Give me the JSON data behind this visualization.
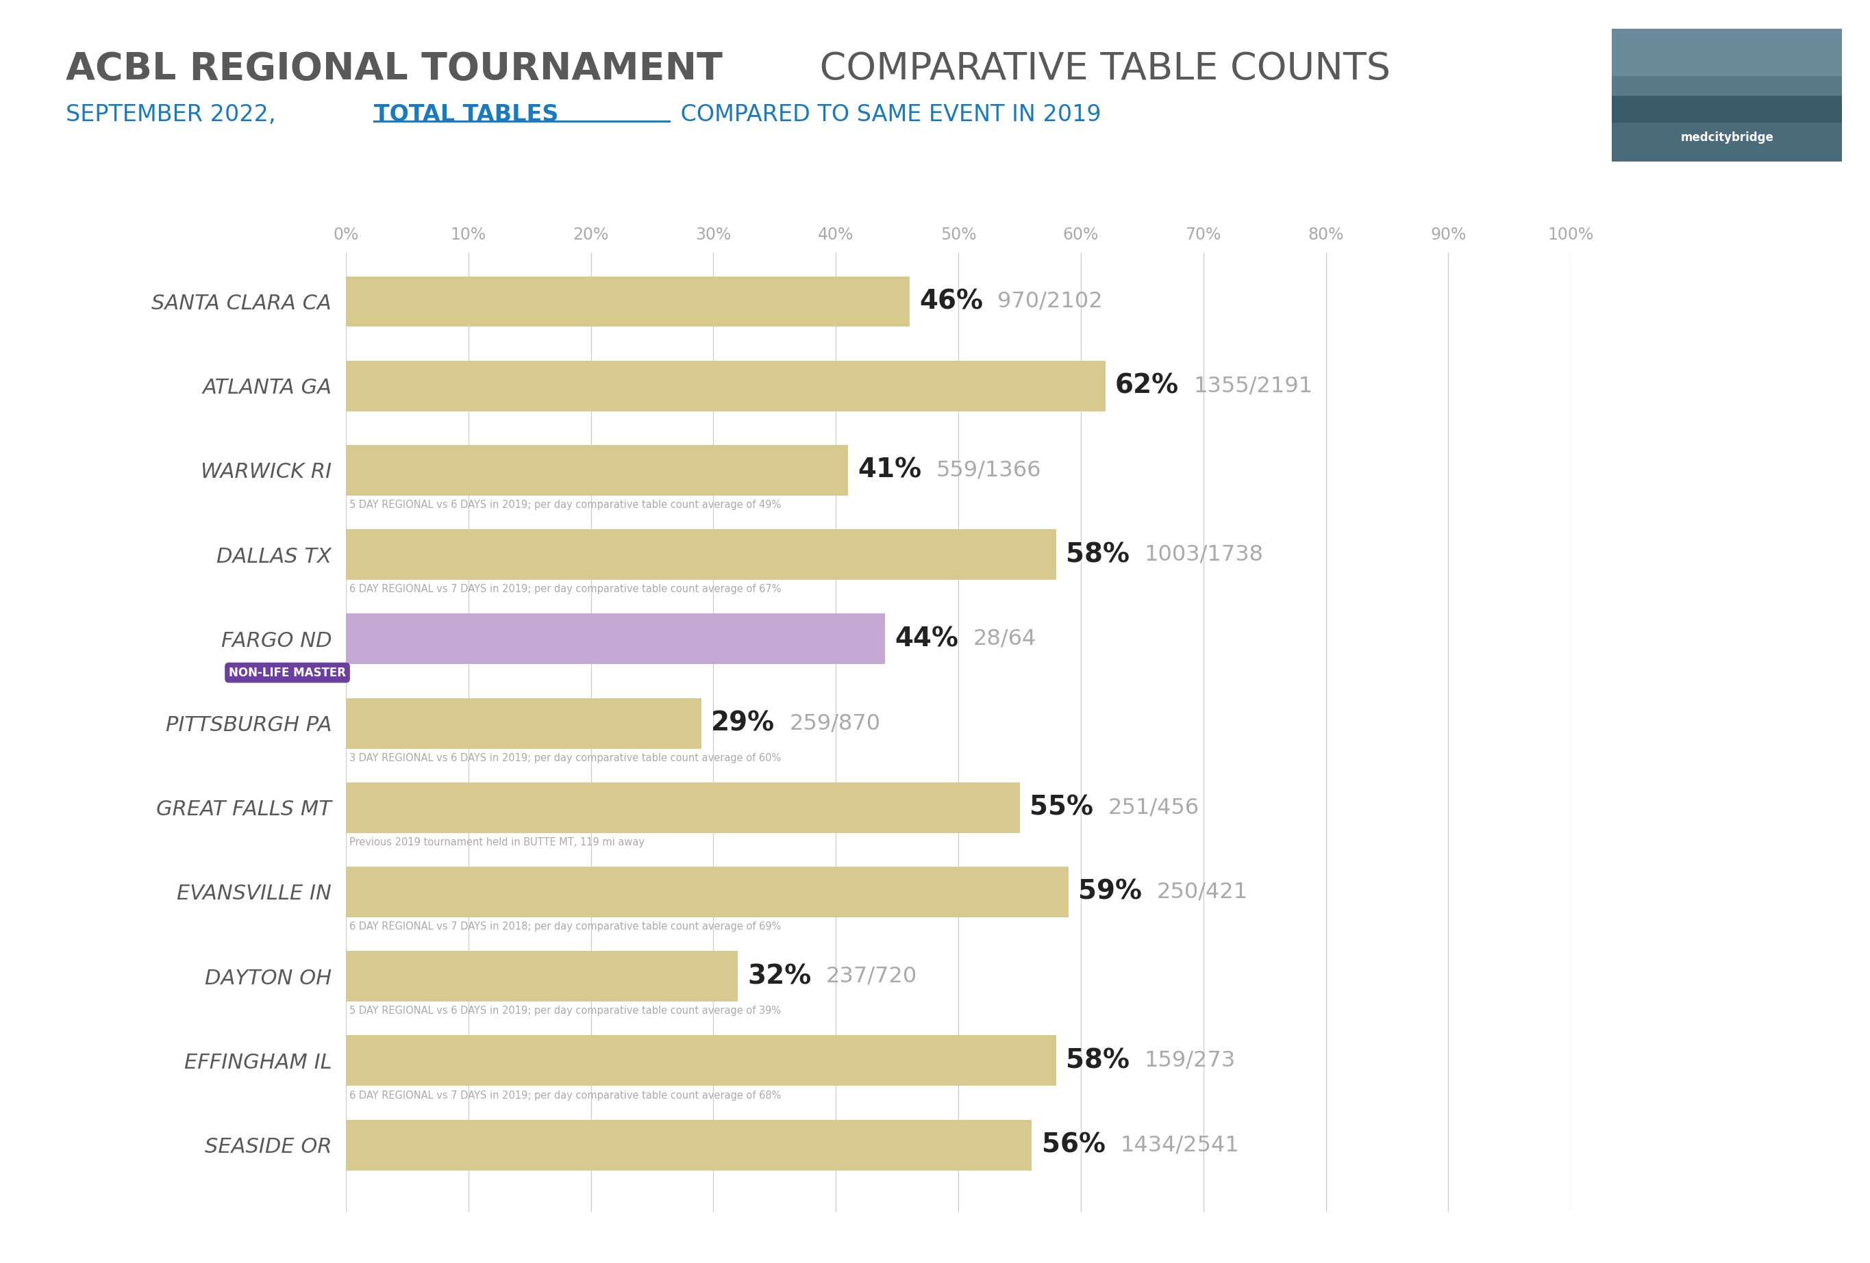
{
  "title_bold": "ACBL REGIONAL TOURNAMENT",
  "title_light": " COMPARATIVE TABLE COUNTS",
  "subtitle_normal": "SEPTEMBER 2022, ",
  "subtitle_bold": "TOTAL TABLES",
  "subtitle_end": " COMPARED TO SAME EVENT IN 2019",
  "categories": [
    "SANTA CLARA CA",
    "ATLANTA GA",
    "WARWICK RI",
    "DALLAS TX",
    "FARGO ND",
    "PITTSBURGH PA",
    "GREAT FALLS MT",
    "EVANSVILLE IN",
    "DAYTON OH",
    "EFFINGHAM IL",
    "SEASIDE OR"
  ],
  "values": [
    46,
    62,
    41,
    58,
    44,
    29,
    55,
    59,
    32,
    58,
    56
  ],
  "bar_labels": [
    "46%",
    "62%",
    "41%",
    "58%",
    "44%",
    "29%",
    "55%",
    "59%",
    "32%",
    "58%",
    "56%"
  ],
  "table_counts": [
    "970/2102",
    "1355/2191",
    "559/1366",
    "1003/1738",
    "28/64",
    "259/870",
    "251/456",
    "250/421",
    "237/720",
    "159/273",
    "1434/2541"
  ],
  "sub_annotations": [
    null,
    null,
    "5 DAY REGIONAL vs 6 DAYS in 2019; per day comparative table count average of 49%",
    "6 DAY REGIONAL vs 7 DAYS in 2019; per day comparative table count average of 67%",
    null,
    "3 DAY REGIONAL vs 6 DAYS in 2019; per day comparative table count average of 60%",
    "Previous 2019 tournament held in BUTTE MT, 119 mi away",
    "6 DAY REGIONAL vs 7 DAYS in 2018; per day comparative table count average of 69%",
    "5 DAY REGIONAL vs 6 DAYS in 2019; per day comparative table count average of 39%",
    "6 DAY REGIONAL vs 7 DAYS in 2019; per day comparative table count average of 68%",
    null
  ],
  "fargo_badge": "NON-LIFE MASTER",
  "tan_color": "#d8ca8e",
  "purple_color": "#c4a8d4",
  "purple_badge_color": "#6b3fa0",
  "grid_color": "#cccccc",
  "title_gray": "#595959",
  "subtitle_blue": "#1a7abf",
  "pct_label_color": "#222222",
  "count_label_color": "#aaaaaa",
  "annotation_color": "#aaaaaa",
  "ytick_color": "#595959",
  "xtick_color": "#aaaaaa",
  "bg_color": "#ffffff",
  "xtick_vals": [
    0,
    10,
    20,
    30,
    40,
    50,
    60,
    70,
    80,
    90,
    100
  ]
}
